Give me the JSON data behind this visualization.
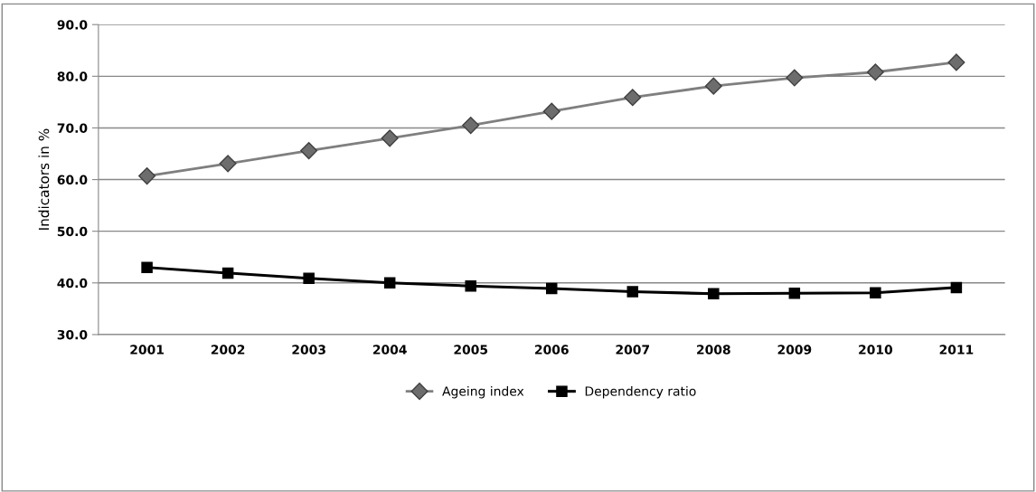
{
  "chart_data": {
    "type": "line",
    "ylabel": "Indicators in %",
    "categories": [
      "2001",
      "2002",
      "2003",
      "2004",
      "2005",
      "2006",
      "2007",
      "2008",
      "2009",
      "2010",
      "2011"
    ],
    "series": [
      {
        "name": "Ageing index",
        "color": "#7f7f7f",
        "marker": "diamond",
        "values": [
          60.7,
          63.1,
          65.6,
          68.0,
          70.5,
          73.2,
          75.9,
          78.1,
          79.7,
          80.8,
          82.7
        ]
      },
      {
        "name": "Dependency ratio",
        "color": "#000000",
        "marker": "square",
        "values": [
          43.0,
          41.9,
          40.9,
          40.0,
          39.4,
          38.9,
          38.3,
          37.9,
          38.0,
          38.1,
          39.1
        ]
      }
    ],
    "ylim": [
      30,
      90
    ],
    "yticks": [
      {
        "value": 30,
        "label": "30.0"
      },
      {
        "value": 40,
        "label": "40.0"
      },
      {
        "value": 50,
        "label": "50.0"
      },
      {
        "value": 60,
        "label": "60.0"
      },
      {
        "value": 70,
        "label": "70.0"
      },
      {
        "value": 80,
        "label": "80.0"
      },
      {
        "value": 90,
        "label": "90.0"
      }
    ],
    "grid": "y",
    "legend": "bottom",
    "line_style": "solid"
  }
}
